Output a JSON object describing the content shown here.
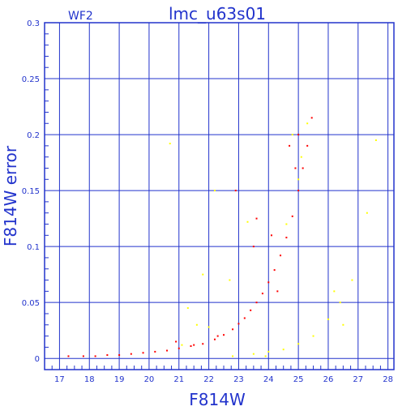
{
  "chart_data": {
    "type": "scatter",
    "title": "lmc_u63s01",
    "subtitle": "WF2",
    "xlabel": "F814W",
    "ylabel": "F814W error",
    "xlim": [
      16.5,
      28.2
    ],
    "ylim": [
      -0.01,
      0.3
    ],
    "x_ticks": [
      17,
      18,
      19,
      20,
      21,
      22,
      23,
      24,
      25,
      26,
      27,
      28
    ],
    "y_ticks": [
      0,
      0.05,
      0.1,
      0.15,
      0.2,
      0.25,
      0.3
    ],
    "x_tick_labels": [
      "17",
      "18",
      "19",
      "20",
      "21",
      "22",
      "23",
      "24",
      "25",
      "26",
      "27",
      "28"
    ],
    "y_tick_labels": [
      "0",
      "0.05",
      "0.1",
      "0.15",
      "0.2",
      "0.25",
      "0.3"
    ],
    "grid": true,
    "series": [
      {
        "color": "#ff0000",
        "points": [
          [
            17.3,
            0.002
          ],
          [
            17.8,
            0.002
          ],
          [
            18.2,
            0.002
          ],
          [
            18.6,
            0.003
          ],
          [
            19.0,
            0.003
          ],
          [
            19.4,
            0.004
          ],
          [
            19.8,
            0.005
          ],
          [
            20.2,
            0.006
          ],
          [
            20.6,
            0.007
          ],
          [
            21.0,
            0.009
          ],
          [
            21.4,
            0.011
          ],
          [
            21.8,
            0.013
          ],
          [
            22.2,
            0.017
          ],
          [
            22.5,
            0.021
          ],
          [
            22.8,
            0.026
          ],
          [
            23.0,
            0.031
          ],
          [
            23.2,
            0.036
          ],
          [
            23.4,
            0.043
          ],
          [
            23.6,
            0.05
          ],
          [
            23.8,
            0.058
          ],
          [
            24.0,
            0.068
          ],
          [
            24.2,
            0.079
          ],
          [
            24.4,
            0.092
          ],
          [
            24.6,
            0.108
          ],
          [
            24.8,
            0.127
          ],
          [
            25.0,
            0.15
          ],
          [
            25.15,
            0.17
          ],
          [
            25.3,
            0.19
          ],
          [
            25.45,
            0.215
          ],
          [
            22.9,
            0.15
          ],
          [
            23.5,
            0.1
          ],
          [
            21.5,
            0.012
          ],
          [
            20.9,
            0.015
          ],
          [
            24.3,
            0.06
          ],
          [
            24.7,
            0.19
          ],
          [
            25.0,
            0.2
          ],
          [
            23.6,
            0.125
          ],
          [
            24.1,
            0.11
          ],
          [
            22.3,
            0.02
          ],
          [
            24.9,
            0.17
          ]
        ]
      },
      {
        "color": "#ffff00",
        "points": [
          [
            20.7,
            0.192
          ],
          [
            21.3,
            0.045
          ],
          [
            22.2,
            0.15
          ],
          [
            21.8,
            0.075
          ],
          [
            22.7,
            0.07
          ],
          [
            23.3,
            0.122
          ],
          [
            24.8,
            0.2
          ],
          [
            25.1,
            0.18
          ],
          [
            25.3,
            0.21
          ],
          [
            27.3,
            0.13
          ],
          [
            27.6,
            0.195
          ],
          [
            26.8,
            0.07
          ],
          [
            22.8,
            0.002
          ],
          [
            23.5,
            0.004
          ],
          [
            24.0,
            0.006
          ],
          [
            24.5,
            0.008
          ],
          [
            25.0,
            0.013
          ],
          [
            25.5,
            0.02
          ],
          [
            26.0,
            0.035
          ],
          [
            26.4,
            0.05
          ],
          [
            26.2,
            0.06
          ],
          [
            21.6,
            0.03
          ],
          [
            22.0,
            0.028
          ],
          [
            21.1,
            0.012
          ],
          [
            23.9,
            0.002
          ],
          [
            24.6,
            0.12
          ],
          [
            25.0,
            0.16
          ],
          [
            26.5,
            0.03
          ]
        ]
      }
    ]
  }
}
